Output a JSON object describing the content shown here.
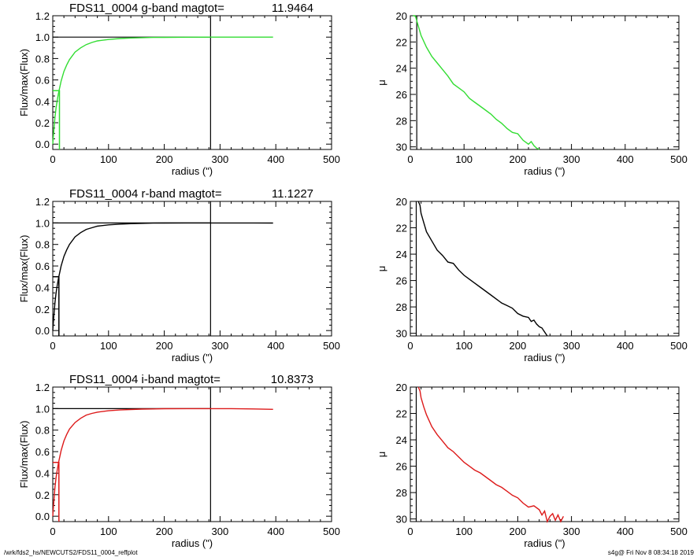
{
  "colors": {
    "g": "#33dd33",
    "r": "#000000",
    "i": "#dd1a1a",
    "axis": "#000000"
  },
  "footer": {
    "left": "/wrk/fds2_hs/NEWCUTS2/FDS11_0004_reffplot",
    "right": "s4g@  Fri Nov  8 08:34:18 2019"
  },
  "chart_data": [
    {
      "type": "line",
      "band": "g",
      "title_name": "FDS11_0004 g-band  magtot=",
      "title_value": "11.9464",
      "xlabel": "radius (\")",
      "ylabel": "Flux/max(Flux)",
      "xlim": [
        0,
        500
      ],
      "ylim": [
        -0.05,
        1.2
      ],
      "xticks": [
        "0",
        "100",
        "200",
        "300",
        "400",
        "500"
      ],
      "yticks": [
        "0.0",
        "0.2",
        "0.4",
        "0.6",
        "0.8",
        "1.0",
        "1.2"
      ],
      "curve": {
        "x": [
          0,
          2,
          4,
          6,
          8,
          10,
          15,
          20,
          25,
          30,
          40,
          50,
          60,
          70,
          80,
          100,
          120,
          140,
          160,
          180,
          200,
          240,
          280,
          320,
          360,
          395
        ],
        "y": [
          0,
          0.13,
          0.25,
          0.34,
          0.41,
          0.47,
          0.59,
          0.68,
          0.74,
          0.79,
          0.86,
          0.9,
          0.93,
          0.95,
          0.965,
          0.978,
          0.987,
          0.992,
          0.995,
          0.997,
          0.998,
          0.999,
          1.0,
          1.0,
          1.0,
          1.0
        ]
      },
      "refline_y": 1.0,
      "refline_x": [
        0,
        283
      ],
      "vline_x": 283,
      "halflight": {
        "r": 12,
        "level": 0.5
      }
    },
    {
      "type": "line",
      "band": "g",
      "xlabel": "radius (\")",
      "ylabel": "μ",
      "xlim": [
        0,
        500
      ],
      "ylim": [
        30.2,
        20
      ],
      "xticks": [
        "0",
        "100",
        "200",
        "300",
        "400",
        "500"
      ],
      "yticks": [
        "20",
        "22",
        "24",
        "26",
        "28",
        "30"
      ],
      "curve": {
        "x": [
          5,
          8,
          10,
          15,
          20,
          30,
          40,
          50,
          60,
          70,
          80,
          90,
          100,
          110,
          120,
          130,
          140,
          150,
          160,
          170,
          175,
          180,
          190,
          200,
          210,
          220,
          225,
          230,
          235,
          240
        ],
        "y": [
          20.0,
          19.9,
          20.1,
          20.8,
          21.5,
          22.4,
          23.1,
          23.6,
          24.1,
          24.6,
          25.2,
          25.5,
          25.8,
          26.3,
          26.6,
          26.9,
          27.2,
          27.5,
          27.9,
          28.2,
          28.4,
          28.6,
          28.9,
          29.0,
          29.5,
          29.8,
          29.6,
          29.9,
          30.1,
          30.2
        ]
      },
      "vline_x": 12
    },
    {
      "type": "line",
      "band": "r",
      "title_name": "FDS11_0004 r-band  magtot=",
      "title_value": "11.1227",
      "xlabel": "radius (\")",
      "ylabel": "Flux/max(Flux)",
      "xlim": [
        0,
        500
      ],
      "ylim": [
        -0.05,
        1.2
      ],
      "xticks": [
        "0",
        "100",
        "200",
        "300",
        "400",
        "500"
      ],
      "yticks": [
        "0.0",
        "0.2",
        "0.4",
        "0.6",
        "0.8",
        "1.0",
        "1.2"
      ],
      "curve": {
        "x": [
          0,
          2,
          4,
          6,
          8,
          10,
          15,
          20,
          25,
          30,
          40,
          50,
          60,
          70,
          80,
          100,
          120,
          140,
          160,
          180,
          200,
          240,
          280,
          320,
          360,
          395
        ],
        "y": [
          0,
          0.14,
          0.26,
          0.35,
          0.42,
          0.48,
          0.6,
          0.69,
          0.75,
          0.8,
          0.87,
          0.91,
          0.94,
          0.955,
          0.97,
          0.982,
          0.989,
          0.993,
          0.996,
          0.998,
          0.999,
          1.0,
          1.0,
          1.0,
          1.0,
          0.999
        ]
      },
      "refline_y": 1.0,
      "refline_x": [
        0,
        283
      ],
      "vline_x": 283,
      "halflight": {
        "r": 11,
        "level": 0.5
      }
    },
    {
      "type": "line",
      "band": "r",
      "xlabel": "radius (\")",
      "ylabel": "μ",
      "xlim": [
        0,
        500
      ],
      "ylim": [
        30.2,
        20
      ],
      "xticks": [
        "0",
        "100",
        "200",
        "300",
        "400",
        "500"
      ],
      "yticks": [
        "20",
        "22",
        "24",
        "26",
        "28",
        "30"
      ],
      "curve": {
        "x": [
          15,
          18,
          20,
          25,
          30,
          40,
          50,
          60,
          70,
          80,
          90,
          100,
          110,
          120,
          130,
          140,
          150,
          160,
          170,
          180,
          190,
          200,
          210,
          220,
          225,
          230,
          235,
          240,
          245,
          250,
          255
        ],
        "y": [
          19.9,
          20.3,
          20.9,
          21.6,
          22.3,
          23.0,
          23.7,
          24.1,
          24.6,
          24.7,
          25.2,
          25.6,
          25.9,
          26.2,
          26.5,
          26.8,
          27.1,
          27.4,
          27.7,
          27.9,
          28.1,
          28.5,
          28.7,
          28.8,
          29.1,
          29.0,
          29.3,
          29.5,
          29.6,
          29.9,
          30.2
        ]
      },
      "vline_x": 11
    },
    {
      "type": "line",
      "band": "i",
      "title_name": "FDS11_0004 i-band  magtot=",
      "title_value": "10.8373",
      "xlabel": "radius (\")",
      "ylabel": "Flux/max(Flux)",
      "xlim": [
        0,
        500
      ],
      "ylim": [
        -0.05,
        1.2
      ],
      "xticks": [
        "0",
        "100",
        "200",
        "300",
        "400",
        "500"
      ],
      "yticks": [
        "0.0",
        "0.2",
        "0.4",
        "0.6",
        "0.8",
        "1.0",
        "1.2"
      ],
      "curve": {
        "x": [
          0,
          2,
          4,
          6,
          8,
          10,
          15,
          20,
          25,
          30,
          40,
          50,
          60,
          70,
          80,
          100,
          120,
          140,
          160,
          180,
          200,
          240,
          280,
          320,
          360,
          395
        ],
        "y": [
          0,
          0.14,
          0.27,
          0.36,
          0.43,
          0.49,
          0.61,
          0.7,
          0.76,
          0.81,
          0.87,
          0.91,
          0.94,
          0.955,
          0.967,
          0.98,
          0.987,
          0.992,
          0.995,
          0.997,
          0.999,
          1.0,
          1.0,
          1.0,
          0.997,
          0.993
        ]
      },
      "refline_y": 1.0,
      "refline_x": [
        0,
        283
      ],
      "vline_x": 283,
      "halflight": {
        "r": 11,
        "level": 0.5
      }
    },
    {
      "type": "line",
      "band": "i",
      "xlabel": "radius (\")",
      "ylabel": "μ",
      "xlim": [
        0,
        500
      ],
      "ylim": [
        30.2,
        20
      ],
      "xticks": [
        "0",
        "100",
        "200",
        "300",
        "400",
        "500"
      ],
      "yticks": [
        "20",
        "22",
        "24",
        "26",
        "28",
        "30"
      ],
      "curve": {
        "x": [
          15,
          18,
          20,
          25,
          30,
          40,
          50,
          60,
          70,
          80,
          90,
          100,
          110,
          120,
          130,
          140,
          150,
          160,
          170,
          180,
          190,
          200,
          210,
          220,
          230,
          240,
          245,
          250,
          255,
          260,
          265,
          270,
          275,
          280,
          285
        ],
        "y": [
          19.9,
          20.3,
          20.8,
          21.5,
          22.1,
          23.0,
          23.6,
          24.1,
          24.6,
          24.9,
          25.3,
          25.7,
          26.0,
          26.3,
          26.5,
          26.8,
          27.1,
          27.4,
          27.6,
          27.9,
          28.2,
          28.4,
          28.8,
          29.1,
          29.0,
          29.3,
          29.7,
          29.4,
          30.2,
          29.8,
          29.6,
          30.1,
          29.7,
          30.2,
          29.8
        ]
      },
      "vline_x": 11
    }
  ]
}
